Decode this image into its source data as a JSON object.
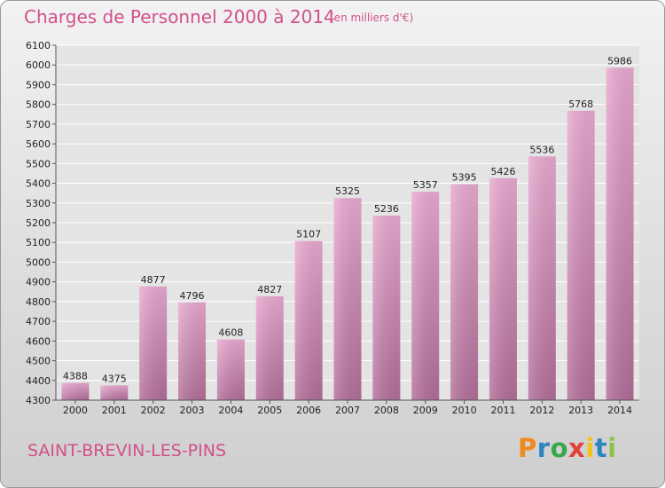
{
  "header": {
    "title": "Charges de Personnel 2000 à 2014",
    "unit_note": "(en milliers d'€)"
  },
  "footer": {
    "city": "SAINT-BREVIN-LES-PINS",
    "logo_text": "Proxiti"
  },
  "colors": {
    "bar_top": "#e9a9d0",
    "bar_bottom": "#b26e98",
    "title_color": "#d2508a"
  },
  "chart_data": {
    "type": "bar",
    "title": "Charges de Personnel 2000 à 2014",
    "subtitle": "(en milliers d'€)",
    "categories": [
      "2000",
      "2001",
      "2002",
      "2003",
      "2004",
      "2005",
      "2006",
      "2007",
      "2008",
      "2009",
      "2010",
      "2011",
      "2012",
      "2013",
      "2014"
    ],
    "values": [
      4388,
      4375,
      4877,
      4796,
      4608,
      4827,
      5107,
      5325,
      5236,
      5357,
      5395,
      5426,
      5536,
      5768,
      5986
    ],
    "ylim": [
      4300,
      6100
    ],
    "yticks": [
      4300,
      4400,
      4500,
      4600,
      4700,
      4800,
      4900,
      5000,
      5100,
      5200,
      5300,
      5400,
      5500,
      5600,
      5700,
      5800,
      5900,
      6000,
      6100
    ],
    "grid": true,
    "legend": "none"
  }
}
